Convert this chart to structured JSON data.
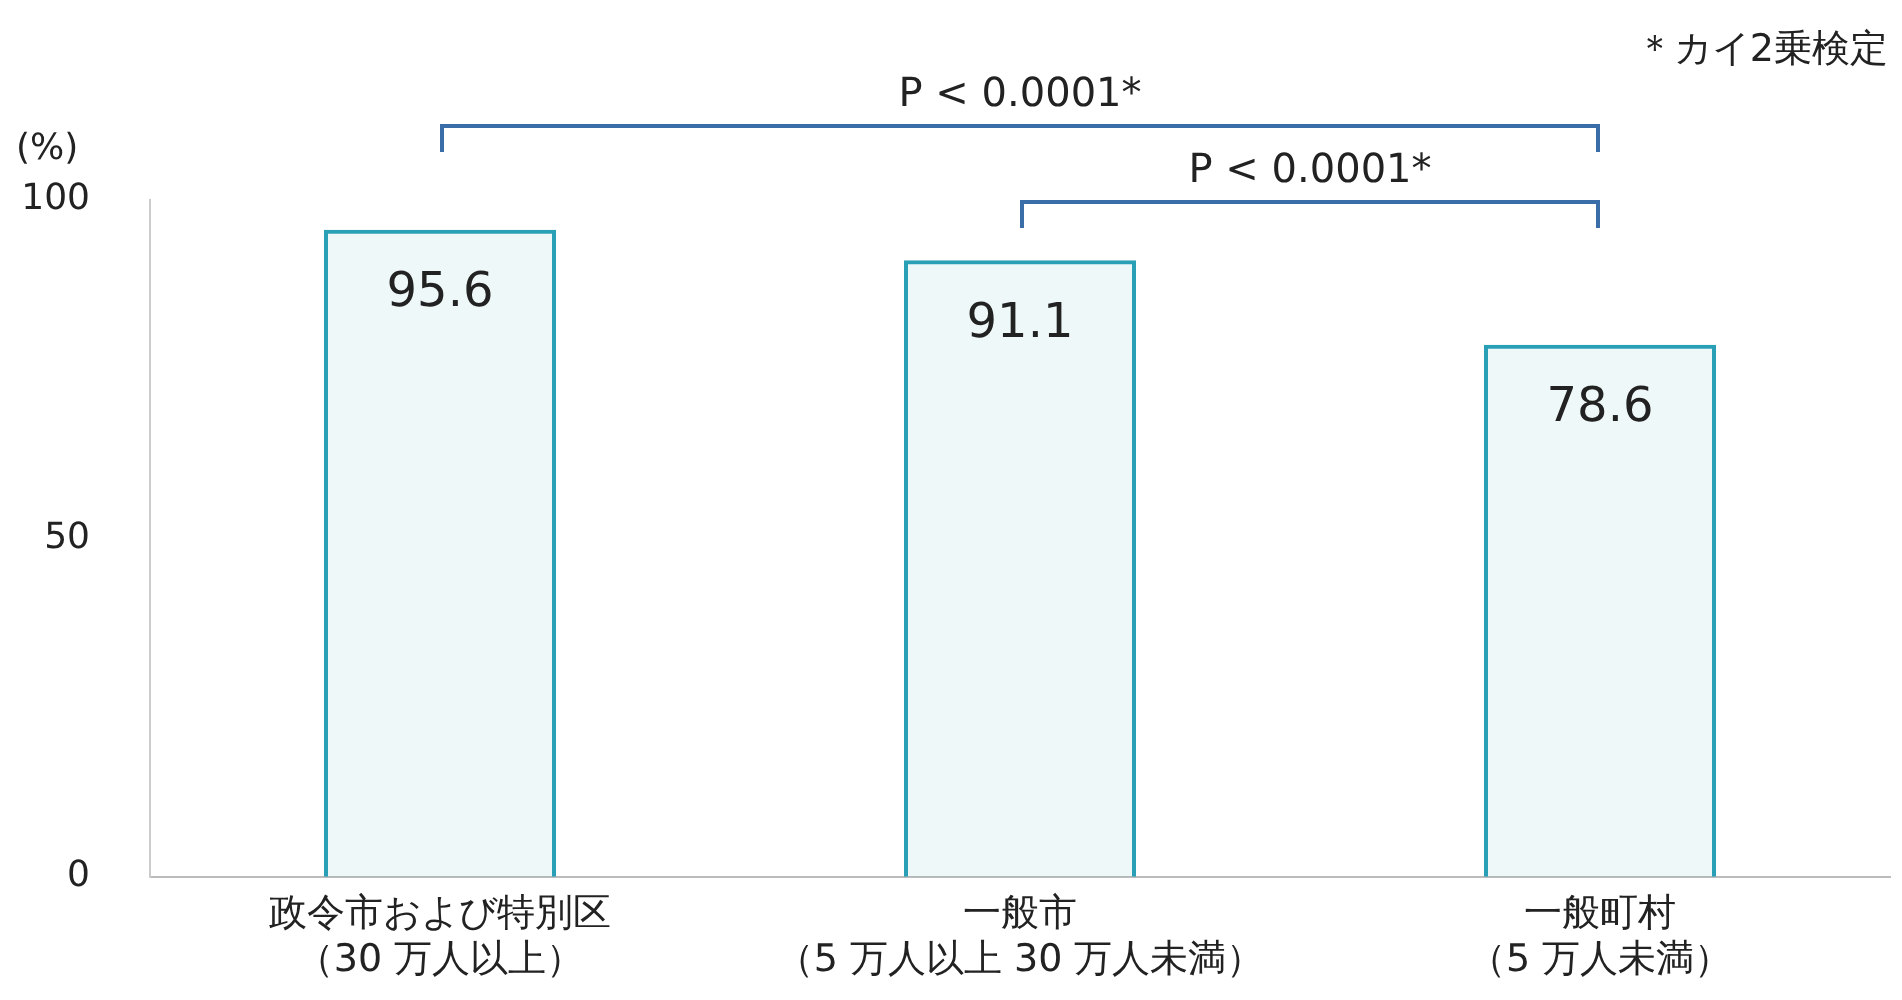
{
  "chart_data": {
    "type": "bar",
    "ylabel": "(%)",
    "categories": [
      "政令市および特別区（30 万人以上）",
      "一般市（5 万人以上 30 万人未満）",
      "一般町村（5 万人未満）"
    ],
    "values": [
      95.6,
      91.1,
      78.6
    ],
    "color": "#2aa0b6",
    "ylim": [
      0,
      100
    ],
    "yticks": [
      0,
      50,
      100
    ],
    "grid": false,
    "data_labels": true,
    "annotations": [
      "P < 0.0001*",
      "P < 0.0001*",
      "＊カイ2乗検定"
    ]
  }
}
